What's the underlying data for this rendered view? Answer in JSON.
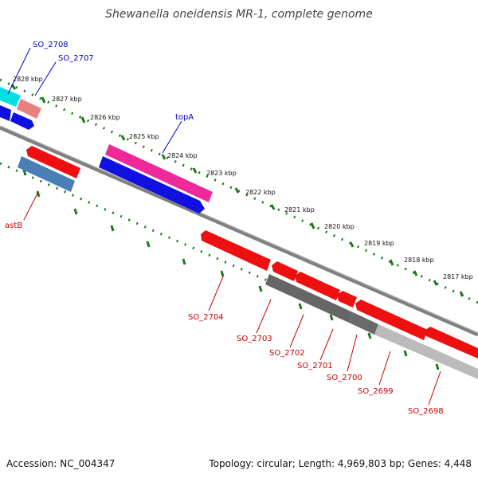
{
  "title": "Shewanella oneidensis MR-1, complete genome",
  "footer": {
    "accession": "Accession: NC_004347",
    "summary": "Topology: circular; Length: 4,969,803 bp; Genes: 4,448"
  },
  "scale_labels": [
    "2828 kbp",
    "2827 kbp",
    "2826 kbp",
    "2825 kbp",
    "2824 kbp",
    "2823 kbp",
    "2822 kbp",
    "2821 kbp",
    "2820 kbp",
    "2819 kbp",
    "2818 kbp",
    "2817 kbp"
  ],
  "gene_labels": {
    "so_2708": "SO_2708",
    "so_2707": "SO_2707",
    "topA": "topA",
    "astB": "astB",
    "so_2704": "SO_2704",
    "so_2703": "SO_2703",
    "so_2702": "SO_2702",
    "so_2701": "SO_2701",
    "so_2700": "SO_2700",
    "so_2699": "SO_2699",
    "so_2698": "SO_2698"
  },
  "colors": {
    "forward_label": "#0000cc",
    "reverse_label": "#cc0000",
    "backbone": "#808080",
    "tick": "#1a7a1a"
  }
}
